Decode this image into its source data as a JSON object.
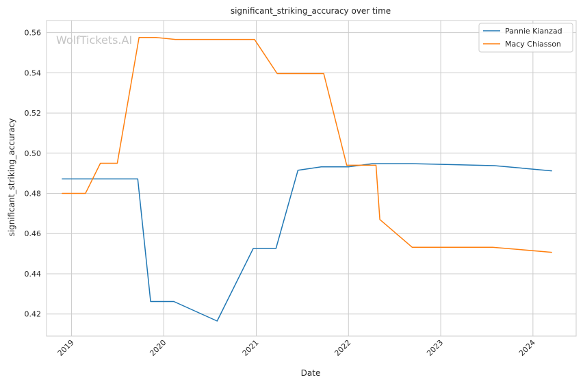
{
  "chart_data": {
    "type": "line",
    "title": "significant_striking_accuracy over time",
    "xlabel": "Date",
    "ylabel": "significant_striking_accuracy",
    "watermark": "WolfTickets.AI",
    "x_ticks": [
      "2019",
      "2020",
      "2021",
      "2022",
      "2023",
      "2024"
    ],
    "y_ticks": [
      "0.42",
      "0.44",
      "0.46",
      "0.48",
      "0.50",
      "0.52",
      "0.54",
      "0.56"
    ],
    "xlim": [
      "2018-09-24",
      "2024-06-20"
    ],
    "ylim": [
      0.409,
      0.566
    ],
    "grid": true,
    "legend_position": "top-right",
    "series": [
      {
        "name": "Pannie Kianzad",
        "color": "#1f77b4",
        "points": [
          [
            "2018-11-25",
            0.4872
          ],
          [
            "2019-09-20",
            0.4872
          ],
          [
            "2019-11-10",
            0.4262
          ],
          [
            "2020-02-10",
            0.4262
          ],
          [
            "2020-07-30",
            0.4165
          ],
          [
            "2020-12-20",
            0.4526
          ],
          [
            "2021-03-20",
            0.4526
          ],
          [
            "2021-06-15",
            0.4915
          ],
          [
            "2021-09-15",
            0.4932
          ],
          [
            "2022-01-01",
            0.4932
          ],
          [
            "2022-04-05",
            0.4948
          ],
          [
            "2022-09-10",
            0.4948
          ],
          [
            "2023-08-01",
            0.4938
          ],
          [
            "2024-03-15",
            0.4912
          ]
        ]
      },
      {
        "name": "Macy Chiasson",
        "color": "#ff7f0e",
        "points": [
          [
            "2018-11-25",
            0.48
          ],
          [
            "2019-02-25",
            0.48
          ],
          [
            "2019-04-25",
            0.495
          ],
          [
            "2019-07-01",
            0.495
          ],
          [
            "2019-09-25",
            0.5576
          ],
          [
            "2019-12-01",
            0.5576
          ],
          [
            "2020-02-15",
            0.5566
          ],
          [
            "2020-12-25",
            0.5566
          ],
          [
            "2021-03-25",
            0.5396
          ],
          [
            "2021-09-25",
            0.5396
          ],
          [
            "2021-12-25",
            0.494
          ],
          [
            "2022-04-20",
            0.494
          ],
          [
            "2022-05-05",
            0.467
          ],
          [
            "2022-09-10",
            0.4532
          ],
          [
            "2023-07-25",
            0.4532
          ],
          [
            "2024-03-15",
            0.4507
          ]
        ]
      }
    ]
  }
}
